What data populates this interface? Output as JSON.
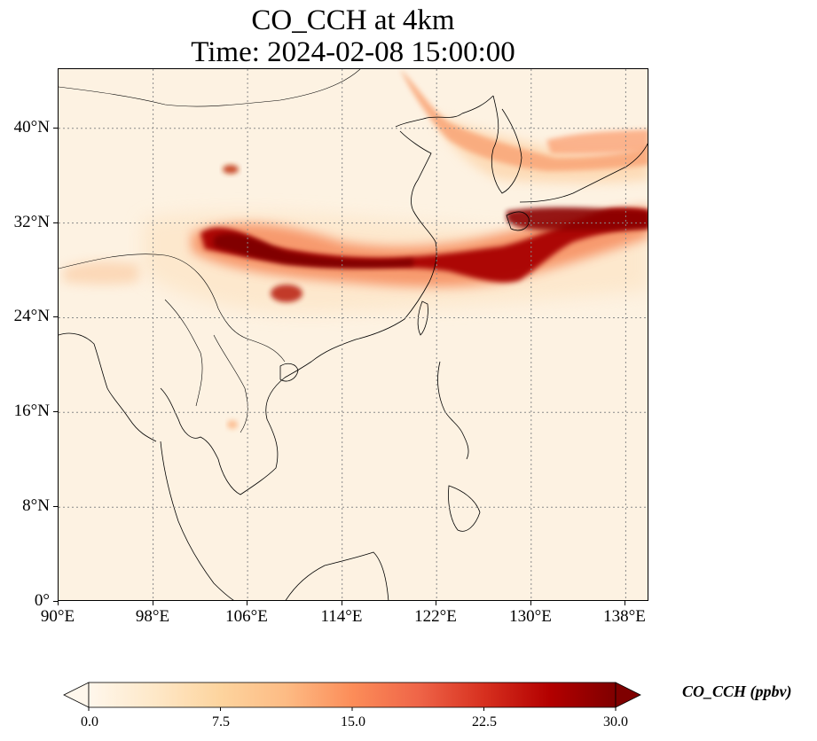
{
  "title": {
    "line1": "CO_CCH at 4km",
    "line2": "Time: 2024-02-08 15:00:00"
  },
  "map": {
    "projection": "PlateCarree",
    "lon_range": [
      90,
      140
    ],
    "lat_range": [
      0,
      45
    ],
    "gridlines": "dotted gray",
    "x_ticks": [
      {
        "value": 90,
        "label": "90°E"
      },
      {
        "value": 98,
        "label": "98°E"
      },
      {
        "value": 106,
        "label": "106°E"
      },
      {
        "value": 114,
        "label": "114°E"
      },
      {
        "value": 122,
        "label": "122°E"
      },
      {
        "value": 130,
        "label": "130°E"
      },
      {
        "value": 138,
        "label": "138°E"
      }
    ],
    "y_ticks": [
      {
        "value": 0,
        "label": "0°"
      },
      {
        "value": 8,
        "label": "8°N"
      },
      {
        "value": 16,
        "label": "16°N"
      },
      {
        "value": 24,
        "label": "24°N"
      },
      {
        "value": 32,
        "label": "32°N"
      },
      {
        "value": 40,
        "label": "40°N"
      }
    ],
    "field": "CO_CCH",
    "features": [
      {
        "name": "main-plume",
        "lon_range": [
          102,
          140
        ],
        "lat_center": 30,
        "level": "high"
      },
      {
        "name": "northern-plume",
        "lon_range": [
          119,
          140
        ],
        "lat_center": 39,
        "level": "moderate"
      },
      {
        "name": "southern-blob",
        "lon": 109,
        "lat": 25.5,
        "level": "high"
      },
      {
        "name": "small-blob",
        "lon": 104.5,
        "lat": 36.5,
        "level": "high"
      }
    ]
  },
  "colorbar": {
    "label": "CO_CCH (ppbv)",
    "colormap": "OrRd",
    "extend": "both",
    "range": [
      0,
      30
    ],
    "colors": [
      "#fff7ec",
      "#fee8c8",
      "#fdd49e",
      "#fdbb84",
      "#fc8d59",
      "#ef6548",
      "#d7301f",
      "#b30000",
      "#7f0000"
    ],
    "ticks": [
      {
        "value": 0,
        "label": "0.0"
      },
      {
        "value": 7.5,
        "label": "7.5"
      },
      {
        "value": 15,
        "label": "15.0"
      },
      {
        "value": 22.5,
        "label": "22.5"
      },
      {
        "value": 30,
        "label": "30.0"
      }
    ]
  }
}
